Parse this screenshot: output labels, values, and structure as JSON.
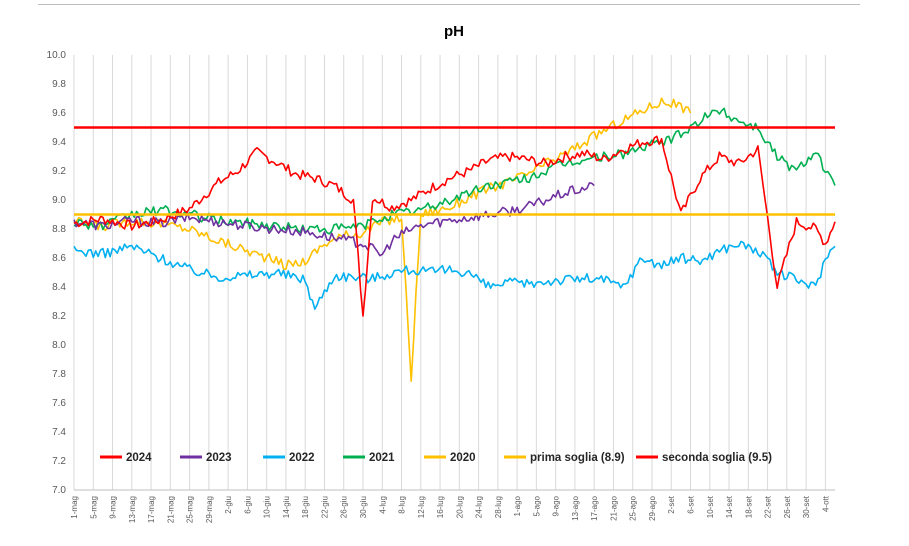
{
  "chart_data": {
    "type": "line",
    "title": "pH",
    "xlabel": "",
    "ylabel": "",
    "ylim": [
      7.0,
      10.0
    ],
    "y_ticks": [
      "7.0",
      "7.2",
      "7.4",
      "7.6",
      "7.8",
      "8.0",
      "8.2",
      "8.4",
      "8.6",
      "8.8",
      "9.0",
      "9.2",
      "9.4",
      "9.6",
      "9.8",
      "10.0"
    ],
    "x_tick_labels": [
      "1-mag",
      "5-mag",
      "9-mag",
      "13-mag",
      "17-mag",
      "21-mag",
      "25-mag",
      "29-mag",
      "2-giu",
      "6-giu",
      "10-giu",
      "14-giu",
      "18-giu",
      "22-giu",
      "26-giu",
      "30-giu",
      "4-lug",
      "8-lug",
      "12-lug",
      "16-lug",
      "20-lug",
      "24-lug",
      "28-lug",
      "1-ago",
      "5-ago",
      "9-ago",
      "13-ago",
      "17-ago",
      "21-ago",
      "25-ago",
      "29-ago",
      "2-set",
      "6-set",
      "10-set",
      "14-set",
      "18-set",
      "22-set",
      "26-set",
      "30-set",
      "4-ott"
    ],
    "grid": "vertical",
    "legend_position": "bottom-inside",
    "series": [
      {
        "name": "2024",
        "color": "#ff0000",
        "x_day": [
          0,
          6,
          12,
          18,
          24,
          30,
          34,
          38,
          42,
          46,
          50,
          54,
          58,
          60,
          62,
          66,
          70,
          74,
          78,
          82,
          86,
          90,
          94,
          98,
          102,
          106,
          110,
          114,
          118,
          122,
          126,
          130,
          134,
          138,
          142,
          146,
          150,
          154,
          156,
          158
        ],
        "values": [
          8.84,
          8.87,
          8.82,
          8.86,
          8.94,
          9.12,
          9.2,
          9.33,
          9.26,
          9.18,
          9.15,
          9.1,
          9.0,
          8.2,
          9.02,
          8.95,
          9.0,
          9.08,
          9.15,
          9.2,
          9.27,
          9.3,
          9.28,
          9.25,
          9.3,
          9.32,
          9.28,
          9.35,
          9.4,
          9.42,
          8.9,
          9.15,
          9.3,
          9.25,
          9.35,
          8.4,
          8.85,
          8.8,
          8.7,
          8.85
        ]
      },
      {
        "name": "2023",
        "color": "#7030a0",
        "x_day": [
          0,
          6,
          12,
          18,
          24,
          30,
          36,
          42,
          48,
          54,
          60,
          64,
          66,
          70,
          74,
          78,
          82,
          86,
          90,
          94,
          98,
          102,
          106,
          108
        ],
        "values": [
          8.85,
          8.82,
          8.86,
          8.84,
          8.88,
          8.85,
          8.82,
          8.8,
          8.78,
          8.74,
          8.7,
          8.62,
          8.72,
          8.8,
          8.84,
          8.86,
          8.88,
          8.9,
          8.92,
          8.95,
          9.0,
          9.05,
          9.08,
          9.1
        ]
      },
      {
        "name": "2022",
        "color": "#00b0f0",
        "x_day": [
          0,
          6,
          12,
          18,
          24,
          30,
          36,
          42,
          48,
          50,
          54,
          58,
          62,
          66,
          70,
          74,
          78,
          82,
          86,
          90,
          94,
          98,
          102,
          106,
          110,
          114,
          118,
          122,
          126,
          130,
          134,
          138,
          142,
          146,
          150,
          154,
          156,
          158
        ],
        "values": [
          8.65,
          8.63,
          8.68,
          8.6,
          8.52,
          8.47,
          8.48,
          8.5,
          8.45,
          8.25,
          8.48,
          8.47,
          8.46,
          8.5,
          8.52,
          8.5,
          8.52,
          8.5,
          8.4,
          8.43,
          8.42,
          8.44,
          8.45,
          8.46,
          8.45,
          8.4,
          8.6,
          8.55,
          8.6,
          8.58,
          8.65,
          8.7,
          8.65,
          8.5,
          8.45,
          8.4,
          8.6,
          8.68
        ]
      },
      {
        "name": "2021",
        "color": "#00b050",
        "x_day": [
          0,
          6,
          12,
          18,
          24,
          30,
          36,
          42,
          48,
          54,
          60,
          64,
          66,
          70,
          74,
          78,
          82,
          86,
          90,
          94,
          98,
          102,
          106,
          110,
          114,
          118,
          122,
          126,
          130,
          134,
          138,
          142,
          146,
          150,
          154,
          156,
          158
        ],
        "values": [
          8.85,
          8.82,
          8.9,
          8.93,
          8.9,
          8.86,
          8.84,
          8.82,
          8.8,
          8.8,
          8.82,
          8.88,
          8.9,
          8.92,
          8.95,
          9.0,
          9.05,
          9.1,
          9.12,
          9.15,
          9.2,
          9.25,
          9.28,
          9.3,
          9.32,
          9.36,
          9.4,
          9.45,
          9.55,
          9.62,
          9.55,
          9.5,
          9.3,
          9.2,
          9.35,
          9.2,
          9.1
        ]
      },
      {
        "name": "2020",
        "color": "#ffc000",
        "x_day": [
          0,
          6,
          12,
          18,
          24,
          30,
          36,
          40,
          44,
          48,
          52,
          56,
          60,
          64,
          68,
          70,
          72,
          74,
          78,
          82,
          86,
          90,
          94,
          98,
          102,
          106,
          110,
          114,
          118,
          122,
          126,
          128
        ],
        "values": [
          8.85,
          8.82,
          8.86,
          8.84,
          8.8,
          8.72,
          8.65,
          8.6,
          8.55,
          8.58,
          8.7,
          8.75,
          8.78,
          8.85,
          8.88,
          7.78,
          8.9,
          8.92,
          8.95,
          9.02,
          9.08,
          9.12,
          9.18,
          9.25,
          9.32,
          9.4,
          9.48,
          9.55,
          9.62,
          9.68,
          9.65,
          9.6
        ]
      }
    ],
    "thresholds": [
      {
        "name": "prima soglia (8.9)",
        "value": 8.9,
        "color": "#ffc000"
      },
      {
        "name": "seconda soglia (9.5)",
        "value": 9.5,
        "color": "#ff0000"
      }
    ],
    "legend": [
      "2024",
      "2023",
      "2022",
      "2021",
      "2020",
      "prima soglia (8.9)",
      "seconda soglia (9.5)"
    ]
  }
}
